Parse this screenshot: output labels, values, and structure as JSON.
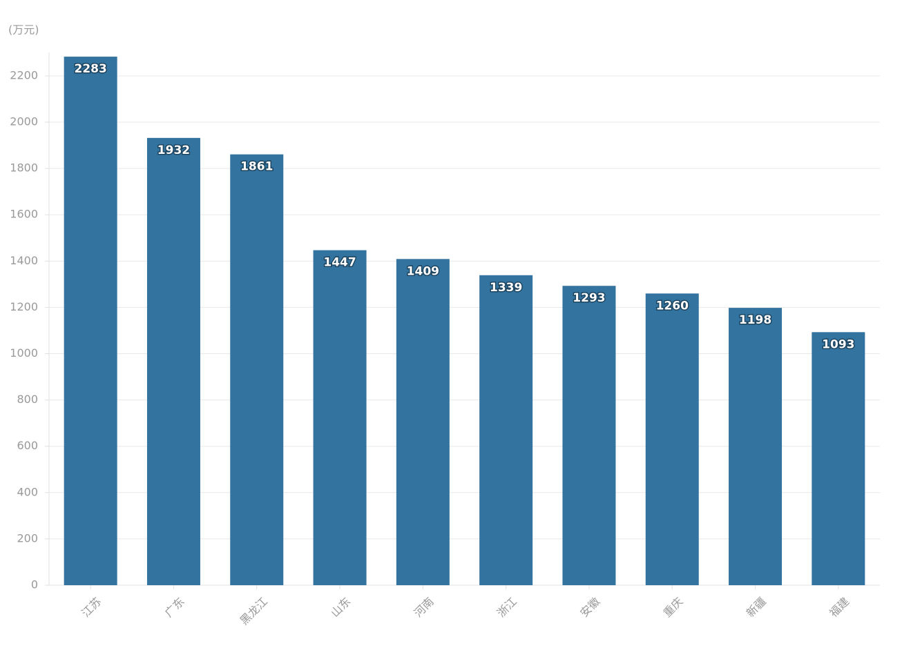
{
  "chart_data": {
    "type": "bar",
    "y_label": "(万元)",
    "categories": [
      "江苏",
      "广东",
      "黑龙江",
      "山东",
      "河南",
      "浙江",
      "安徽",
      "重庆",
      "新疆",
      "福建"
    ],
    "values": [
      2283,
      1932,
      1861,
      1447,
      1409,
      1339,
      1293,
      1260,
      1198,
      1093
    ],
    "color": "#33739f",
    "ylim": [
      0,
      2300
    ],
    "yticks": [
      0,
      200,
      400,
      600,
      800,
      1000,
      1200,
      1400,
      1600,
      1800,
      2000,
      2200
    ],
    "grid": true
  }
}
